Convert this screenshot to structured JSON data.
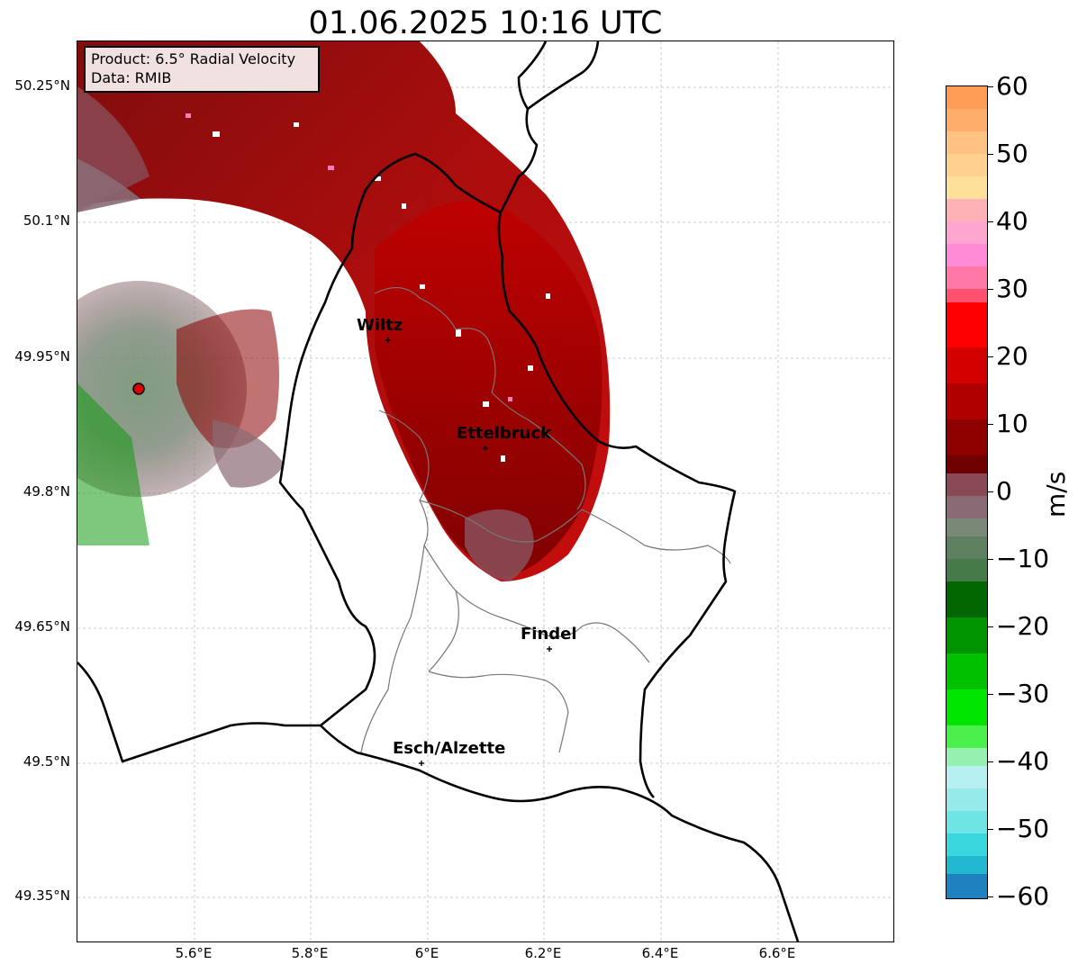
{
  "title": "01.06.2025 10:16 UTC",
  "info_box": {
    "product": "Product: 6.5° Radial Velocity",
    "source": "Data: RMIB"
  },
  "lat_labels": [
    "50.25°N",
    "50.1°N",
    "49.95°N",
    "49.8°N",
    "49.65°N",
    "49.5°N",
    "49.35°N"
  ],
  "lon_labels": [
    "5.6°E",
    "5.8°E",
    "6°E",
    "6.2°E",
    "6.4°E",
    "6.6°E"
  ],
  "cities": [
    {
      "name": "Wiltz"
    },
    {
      "name": "Ettelbruck"
    },
    {
      "name": "Findel"
    },
    {
      "name": "Esch/Alzette"
    }
  ],
  "colorbar": {
    "unit": "m/s",
    "range": [
      -60,
      60
    ],
    "ticks": [
      "60",
      "50",
      "40",
      "30",
      "20",
      "10",
      "0",
      "−10",
      "−20",
      "−30",
      "−40",
      "−50",
      "−60"
    ],
    "colors": {
      "positive_strong": "#ff9b55",
      "pink": "#ff8ad6",
      "red": "#ff0000",
      "dark_red": "#7a0000",
      "neutral": "#6a8a6a",
      "green": "#00cc00",
      "cyan": "#33e0e0",
      "blue": "#2081c0"
    }
  }
}
